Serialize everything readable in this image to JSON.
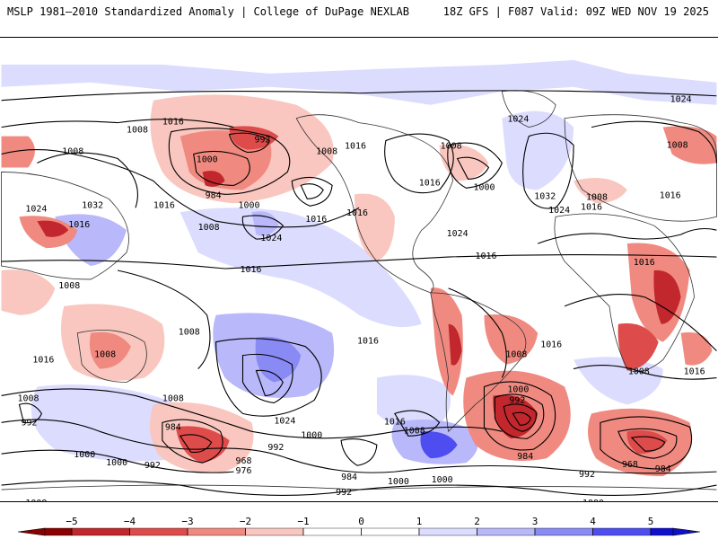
{
  "header": {
    "title_left": "MSLP 1981–2010 Standardized Anomaly | College of DuPage NEXLAB",
    "title_right": "18Z GFS | F087 Valid: 09Z WED NOV 19 2025"
  },
  "colors": {
    "neg5": "#8b0000",
    "neg4": "#c1272d",
    "neg3": "#de4b4b",
    "neg2": "#f08a80",
    "neg1": "#f9c7bf",
    "zero": "#ffffff",
    "pos1": "#dcdcff",
    "pos2": "#b8b8fa",
    "pos3": "#8a8af5",
    "pos4": "#4d4df0",
    "pos5": "#1010cc"
  },
  "colorbar": {
    "ticks": [
      "−5",
      "−4",
      "−3",
      "−2",
      "−1",
      "0",
      "1",
      "2",
      "3",
      "4",
      "5"
    ]
  },
  "isobars": [
    {
      "label": "1016"
    },
    {
      "label": "1024"
    },
    {
      "label": "1008"
    },
    {
      "label": "992"
    },
    {
      "label": "1008"
    },
    {
      "label": "1000"
    },
    {
      "label": "984"
    },
    {
      "label": "1000"
    },
    {
      "label": "1008"
    },
    {
      "label": "1016"
    },
    {
      "label": "1008"
    },
    {
      "label": "1024"
    },
    {
      "label": "1016"
    },
    {
      "label": "1032"
    },
    {
      "label": "1016"
    },
    {
      "label": "1016"
    },
    {
      "label": "1024"
    },
    {
      "label": "1016"
    },
    {
      "label": "1016"
    },
    {
      "label": "1024"
    },
    {
      "label": "1016"
    },
    {
      "label": "1008"
    },
    {
      "label": "1000"
    },
    {
      "label": "1016"
    },
    {
      "label": "1032"
    },
    {
      "label": "1024"
    },
    {
      "label": "1016"
    },
    {
      "label": "1008"
    },
    {
      "label": "1008"
    },
    {
      "label": "1016"
    },
    {
      "label": "1008"
    },
    {
      "label": "1016"
    },
    {
      "label": "1008"
    },
    {
      "label": "1016"
    },
    {
      "label": "1008"
    },
    {
      "label": "1016"
    },
    {
      "label": "1008"
    },
    {
      "label": "1016"
    },
    {
      "label": "1008"
    },
    {
      "label": "1000"
    },
    {
      "label": "992"
    },
    {
      "label": "984"
    },
    {
      "label": "1008"
    },
    {
      "label": "1024"
    },
    {
      "label": "1016"
    },
    {
      "label": "1008"
    },
    {
      "label": "984"
    },
    {
      "label": "968"
    },
    {
      "label": "976"
    },
    {
      "label": "992"
    },
    {
      "label": "1000"
    },
    {
      "label": "1000"
    },
    {
      "label": "992"
    },
    {
      "label": "984"
    },
    {
      "label": "992"
    },
    {
      "label": "1000"
    },
    {
      "label": "1000"
    },
    {
      "label": "1000"
    },
    {
      "label": "1008"
    },
    {
      "label": "1000"
    },
    {
      "label": "992"
    },
    {
      "label": "984"
    },
    {
      "label": "968"
    },
    {
      "label": "984"
    },
    {
      "label": "992"
    },
    {
      "label": "1000"
    },
    {
      "label": "1008"
    },
    {
      "label": "1008"
    },
    {
      "label": "1016"
    },
    {
      "label": "1024"
    }
  ]
}
